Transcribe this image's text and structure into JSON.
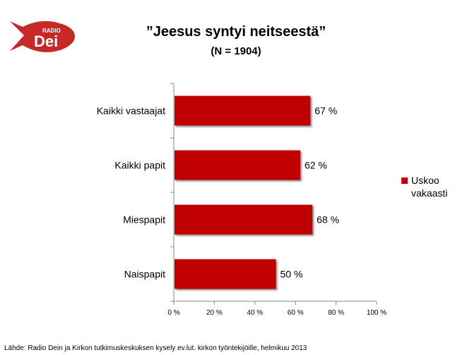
{
  "logo": {
    "text_small": "RADIO",
    "text_large": "Dei",
    "color": "#c62828"
  },
  "title": "”Jeesus syntyi neitseestä”",
  "subtitle": "(N = 1904)",
  "legend_label": "Uskoo vakaasti",
  "source": "Lähde: Radio Dein ja Kirkon tutkimuskeskuksen kysely ev.lut. kirkon työntekijöille, helmikuu 2013",
  "bar_color": "#c00000",
  "chart_data": {
    "type": "bar",
    "orientation": "horizontal",
    "title": "”Jeesus syntyi neitseestä”",
    "subtitle": "(N = 1904)",
    "categories": [
      "Kaikki vastaajat",
      "Kaikki papit",
      "Miespapit",
      "Naispapit"
    ],
    "series": [
      {
        "name": "Uskoo vakaasti",
        "values": [
          67,
          62,
          68,
          50
        ],
        "value_labels": [
          "67 %",
          "62 %",
          "68 %",
          "50 %"
        ]
      }
    ],
    "xlim": [
      0,
      100
    ],
    "x_ticks": [
      "0 %",
      "20 %",
      "40 %",
      "60 %",
      "80 %",
      "100 %"
    ],
    "grid": false,
    "legend_position": "right"
  }
}
